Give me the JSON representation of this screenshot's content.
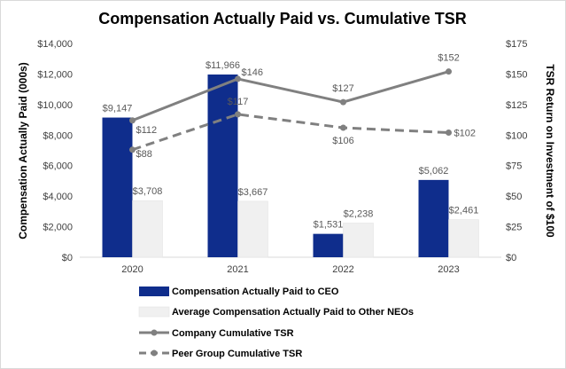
{
  "chart_data": {
    "type": "bar",
    "title": "Compensation Actually Paid vs. Cumulative TSR",
    "categories": [
      "2020",
      "2021",
      "2022",
      "2023"
    ],
    "ylabel": "Compensation Actually Paid (000s)",
    "y2label": "TSR Return on Investment of $100",
    "ylim": [
      0,
      14000
    ],
    "y2lim": [
      0,
      175
    ],
    "yticks": [
      "$0",
      "$2,000",
      "$4,000",
      "$6,000",
      "$8,000",
      "$10,000",
      "$12,000",
      "$14,000"
    ],
    "y2ticks": [
      "$0",
      "$25",
      "$50",
      "$75",
      "$100",
      "$125",
      "$150",
      "$175"
    ],
    "series": [
      {
        "name": "Compensation Actually Paid to CEO",
        "kind": "bar",
        "axis": "left",
        "color": "#0f2d8c",
        "values": [
          9147,
          11966,
          1531,
          5062
        ],
        "labels": [
          "$9,147",
          "$11,966",
          "$1,531",
          "$5,062"
        ]
      },
      {
        "name": "Average Compensation Actually Paid to Other NEOs",
        "kind": "bar",
        "axis": "left",
        "color": "#f0f0f0",
        "values": [
          3708,
          3667,
          2238,
          2461
        ],
        "labels": [
          "$3,708",
          "$3,667",
          "$2,238",
          "$2,461"
        ]
      },
      {
        "name": "Company Cumulative TSR",
        "kind": "line",
        "axis": "right",
        "color": "#808080",
        "dash": "solid",
        "values": [
          112,
          146,
          127,
          152
        ],
        "labels": [
          "$112",
          "$146",
          "$127",
          "$152"
        ]
      },
      {
        "name": "Peer Group Cumulative TSR",
        "kind": "line",
        "axis": "right",
        "color": "#808080",
        "dash": "dashed",
        "values": [
          88,
          117,
          106,
          102
        ],
        "labels": [
          "$88",
          "$117",
          "$106",
          "$102"
        ]
      }
    ],
    "legend_position": "bottom",
    "grid": false
  }
}
